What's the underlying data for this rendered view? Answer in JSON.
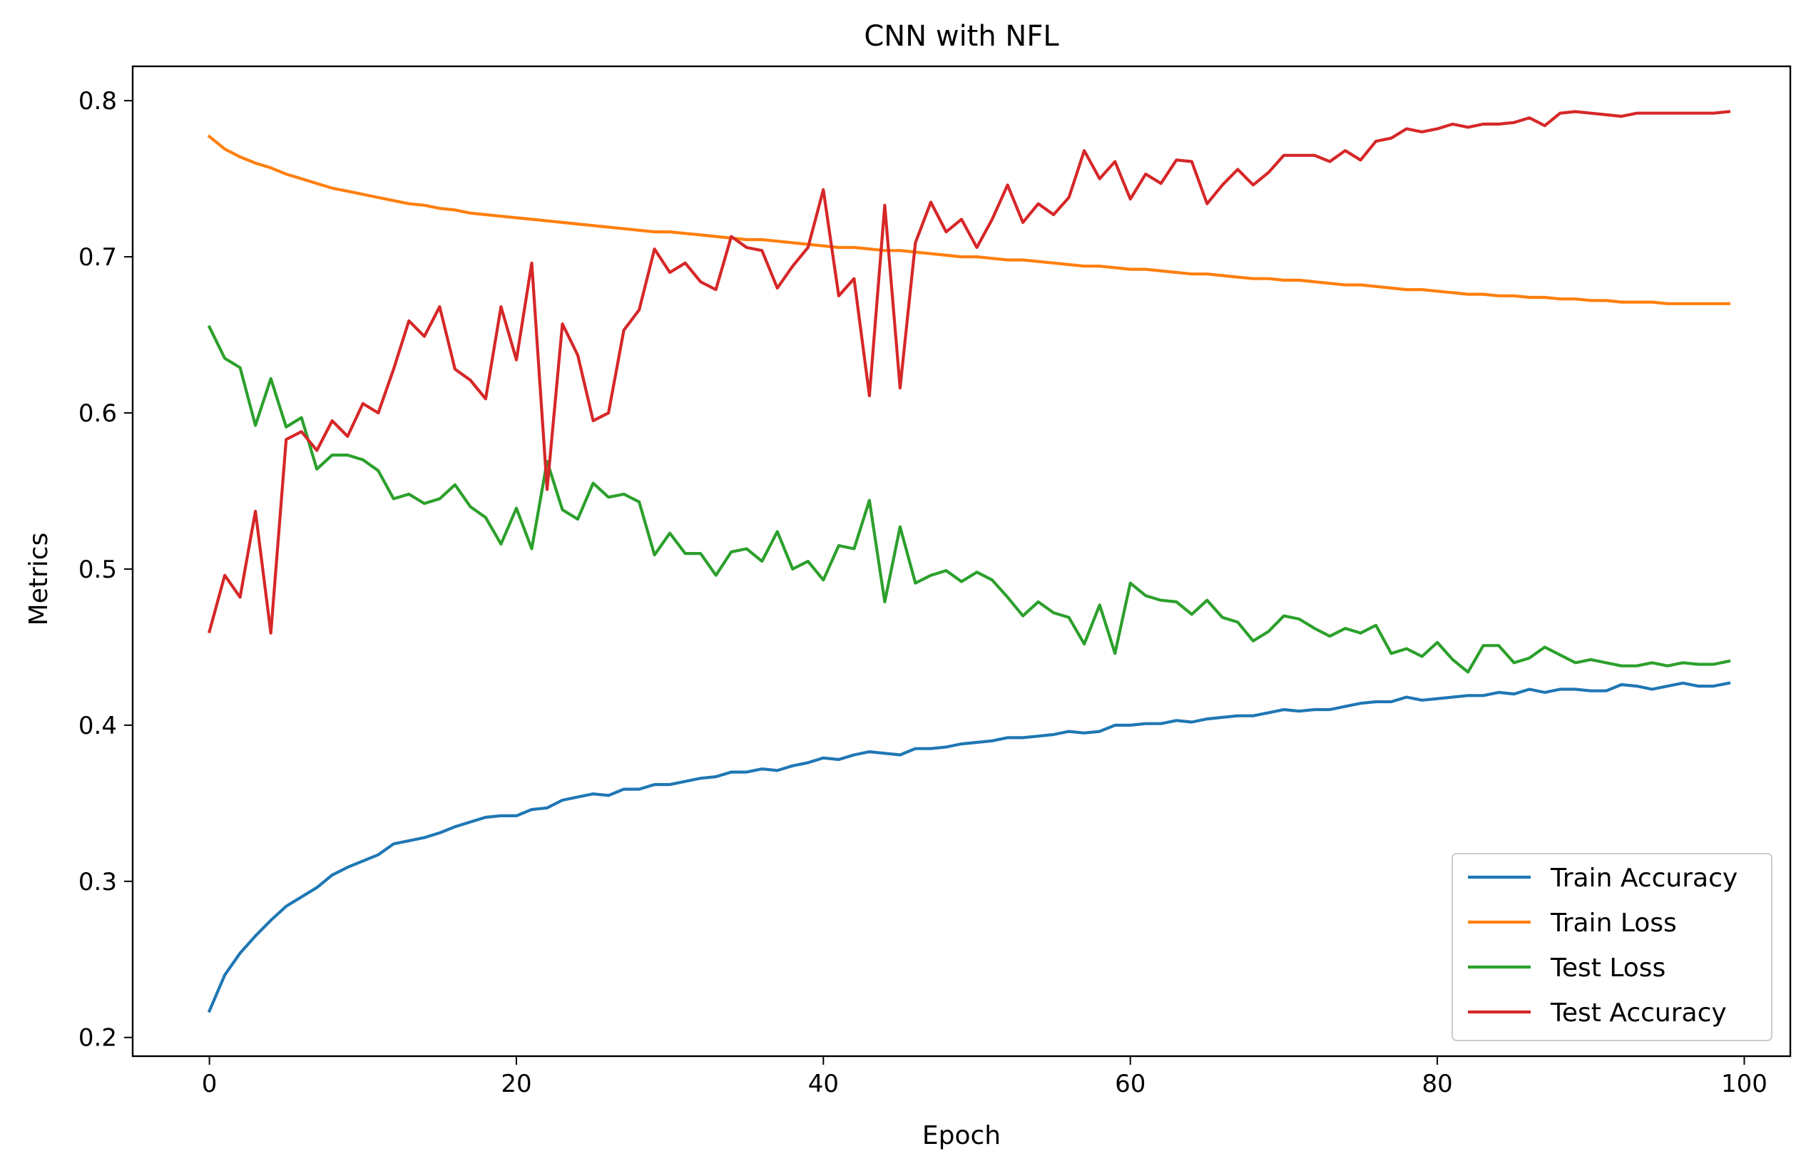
{
  "chart_data": {
    "type": "line",
    "title": "CNN with NFL",
    "xlabel": "Epoch",
    "ylabel": "Metrics",
    "xlim": [
      -5,
      103
    ],
    "ylim": [
      0.188,
      0.822
    ],
    "xticks": [
      0,
      20,
      40,
      60,
      80,
      100
    ],
    "yticks": [
      0.2,
      0.3,
      0.4,
      0.5,
      0.6,
      0.7,
      0.8
    ],
    "xtick_labels": [
      "0",
      "20",
      "40",
      "60",
      "80",
      "100"
    ],
    "ytick_labels": [
      "0.2",
      "0.3",
      "0.4",
      "0.5",
      "0.6",
      "0.7",
      "0.8"
    ],
    "grid": false,
    "legend_position": "lower-right",
    "series": [
      {
        "name": "Train Accuracy",
        "color": "#1f77b4",
        "values": [
          0.217,
          0.24,
          0.254,
          0.265,
          0.275,
          0.284,
          0.29,
          0.296,
          0.304,
          0.309,
          0.313,
          0.317,
          0.324,
          0.326,
          0.328,
          0.331,
          0.335,
          0.338,
          0.341,
          0.342,
          0.342,
          0.346,
          0.347,
          0.352,
          0.354,
          0.356,
          0.355,
          0.359,
          0.359,
          0.362,
          0.362,
          0.364,
          0.366,
          0.367,
          0.37,
          0.37,
          0.372,
          0.371,
          0.374,
          0.376,
          0.379,
          0.378,
          0.381,
          0.383,
          0.382,
          0.381,
          0.385,
          0.385,
          0.386,
          0.388,
          0.389,
          0.39,
          0.392,
          0.392,
          0.393,
          0.394,
          0.396,
          0.395,
          0.396,
          0.4,
          0.4,
          0.401,
          0.401,
          0.403,
          0.402,
          0.404,
          0.405,
          0.406,
          0.406,
          0.408,
          0.41,
          0.409,
          0.41,
          0.41,
          0.412,
          0.414,
          0.415,
          0.415,
          0.418,
          0.416,
          0.417,
          0.418,
          0.419,
          0.419,
          0.421,
          0.42,
          0.423,
          0.421,
          0.423,
          0.423,
          0.422,
          0.422,
          0.426,
          0.425,
          0.423,
          0.425,
          0.427,
          0.425,
          0.425,
          0.427
        ]
      },
      {
        "name": "Train Loss",
        "color": "#ff7f0e",
        "values": [
          0.777,
          0.769,
          0.764,
          0.76,
          0.757,
          0.753,
          0.75,
          0.747,
          0.744,
          0.742,
          0.74,
          0.738,
          0.736,
          0.734,
          0.733,
          0.731,
          0.73,
          0.728,
          0.727,
          0.726,
          0.725,
          0.724,
          0.723,
          0.722,
          0.721,
          0.72,
          0.719,
          0.718,
          0.717,
          0.716,
          0.716,
          0.715,
          0.714,
          0.713,
          0.712,
          0.711,
          0.711,
          0.71,
          0.709,
          0.708,
          0.707,
          0.706,
          0.706,
          0.705,
          0.704,
          0.704,
          0.703,
          0.702,
          0.701,
          0.7,
          0.7,
          0.699,
          0.698,
          0.698,
          0.697,
          0.696,
          0.695,
          0.694,
          0.694,
          0.693,
          0.692,
          0.692,
          0.691,
          0.69,
          0.689,
          0.689,
          0.688,
          0.687,
          0.686,
          0.686,
          0.685,
          0.685,
          0.684,
          0.683,
          0.682,
          0.682,
          0.681,
          0.68,
          0.679,
          0.679,
          0.678,
          0.677,
          0.676,
          0.676,
          0.675,
          0.675,
          0.674,
          0.674,
          0.673,
          0.673,
          0.672,
          0.672,
          0.671,
          0.671,
          0.671,
          0.67,
          0.67,
          0.67,
          0.67,
          0.67
        ]
      },
      {
        "name": "Test Loss",
        "color": "#2ca02c",
        "values": [
          0.655,
          0.635,
          0.629,
          0.592,
          0.622,
          0.591,
          0.597,
          0.564,
          0.573,
          0.573,
          0.57,
          0.563,
          0.545,
          0.548,
          0.542,
          0.545,
          0.554,
          0.54,
          0.533,
          0.516,
          0.539,
          0.513,
          0.569,
          0.538,
          0.532,
          0.555,
          0.546,
          0.548,
          0.543,
          0.509,
          0.523,
          0.51,
          0.51,
          0.496,
          0.511,
          0.513,
          0.505,
          0.524,
          0.5,
          0.505,
          0.493,
          0.515,
          0.513,
          0.544,
          0.479,
          0.527,
          0.491,
          0.496,
          0.499,
          0.492,
          0.498,
          0.493,
          0.482,
          0.47,
          0.479,
          0.472,
          0.469,
          0.452,
          0.477,
          0.446,
          0.491,
          0.483,
          0.48,
          0.479,
          0.471,
          0.48,
          0.469,
          0.466,
          0.454,
          0.46,
          0.47,
          0.468,
          0.462,
          0.457,
          0.462,
          0.459,
          0.464,
          0.446,
          0.449,
          0.444,
          0.453,
          0.442,
          0.434,
          0.451,
          0.451,
          0.44,
          0.443,
          0.45,
          0.445,
          0.44,
          0.442,
          0.44,
          0.438,
          0.438,
          0.44,
          0.438,
          0.44,
          0.439,
          0.439,
          0.441
        ]
      },
      {
        "name": "Test Accuracy",
        "color": "#d62728",
        "values": [
          0.46,
          0.496,
          0.482,
          0.537,
          0.459,
          0.583,
          0.588,
          0.576,
          0.595,
          0.585,
          0.606,
          0.6,
          0.628,
          0.659,
          0.649,
          0.668,
          0.628,
          0.621,
          0.609,
          0.668,
          0.634,
          0.696,
          0.551,
          0.657,
          0.637,
          0.595,
          0.6,
          0.653,
          0.666,
          0.705,
          0.69,
          0.696,
          0.684,
          0.679,
          0.713,
          0.706,
          0.704,
          0.68,
          0.694,
          0.706,
          0.743,
          0.675,
          0.686,
          0.611,
          0.733,
          0.616,
          0.709,
          0.735,
          0.716,
          0.724,
          0.706,
          0.724,
          0.746,
          0.722,
          0.734,
          0.727,
          0.738,
          0.768,
          0.75,
          0.761,
          0.737,
          0.753,
          0.747,
          0.762,
          0.761,
          0.734,
          0.746,
          0.756,
          0.746,
          0.754,
          0.765,
          0.765,
          0.765,
          0.761,
          0.768,
          0.762,
          0.774,
          0.776,
          0.782,
          0.78,
          0.782,
          0.785,
          0.783,
          0.785,
          0.785,
          0.786,
          0.789,
          0.784,
          0.792,
          0.793,
          0.792,
          0.791,
          0.79,
          0.792,
          0.792,
          0.792,
          0.792,
          0.792,
          0.792,
          0.793
        ]
      }
    ]
  }
}
